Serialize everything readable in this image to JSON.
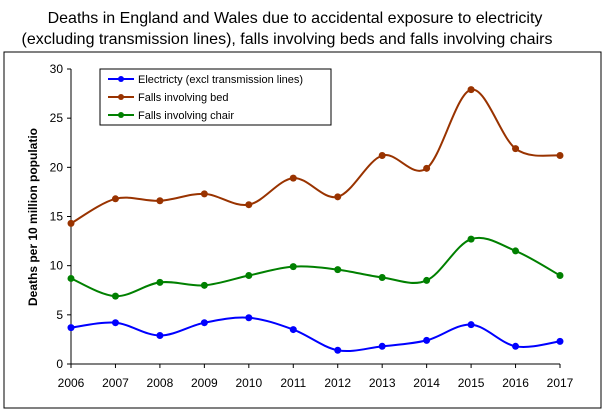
{
  "chart_data": {
    "type": "line",
    "title": "Deaths in England and Wales due to accidental exposure to electricity",
    "subtitle": "(excluding transmission lines), falls involving beds and falls involving chairs",
    "xlabel": "",
    "ylabel": "Deaths per 10 million populatio",
    "ylim": [
      0,
      30
    ],
    "yticks": [
      "0",
      "5",
      "10",
      "15",
      "20",
      "25",
      "30"
    ],
    "categories": [
      "2006",
      "2007",
      "2008",
      "2009",
      "2010",
      "2011",
      "2012",
      "2013",
      "2014",
      "2015",
      "2016",
      "2017"
    ],
    "grid": false,
    "legend_position": "top-left",
    "series": [
      {
        "name": "Electricty (excl transmission lines)",
        "color": "#0000ff",
        "values": [
          3.7,
          4.2,
          2.9,
          4.2,
          4.7,
          3.5,
          1.4,
          1.8,
          2.4,
          4.0,
          1.8,
          2.3
        ]
      },
      {
        "name": "Falls involving bed",
        "color": "#993300",
        "values": [
          14.3,
          16.8,
          16.6,
          17.3,
          16.2,
          18.9,
          17.0,
          21.2,
          19.9,
          27.9,
          21.9,
          21.2
        ]
      },
      {
        "name": "Falls involving chair",
        "color": "#008000",
        "values": [
          8.7,
          6.9,
          8.3,
          8.0,
          9.0,
          9.9,
          9.6,
          8.8,
          8.5,
          12.7,
          11.5,
          9.0
        ]
      }
    ]
  }
}
